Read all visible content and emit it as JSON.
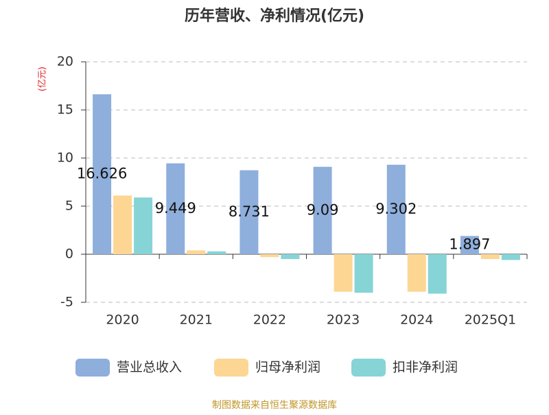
{
  "chart_data": {
    "type": "bar",
    "title": "历年营收、净利情况(亿元)",
    "y_label": "(亿元)",
    "categories": [
      "2020",
      "2021",
      "2022",
      "2023",
      "2024",
      "2025Q1"
    ],
    "series": [
      {
        "name": "营业总收入",
        "color": "#8eaedc",
        "values": [
          16.626,
          9.449,
          8.731,
          9.09,
          9.302,
          1.897
        ],
        "show_labels": true
      },
      {
        "name": "归母净利润",
        "color": "#fdd694",
        "values": [
          6.1,
          0.4,
          -0.3,
          -3.9,
          -3.9,
          -0.5
        ]
      },
      {
        "name": "扣非净利润",
        "color": "#86d4d6",
        "values": [
          5.9,
          0.3,
          -0.5,
          -4.0,
          -4.1,
          -0.6
        ]
      }
    ],
    "ylim": [
      -5,
      20
    ],
    "yticks": [
      -5,
      0,
      5,
      10,
      15,
      20
    ],
    "grid": true,
    "source": "制图数据来自恒生聚源数据库"
  }
}
